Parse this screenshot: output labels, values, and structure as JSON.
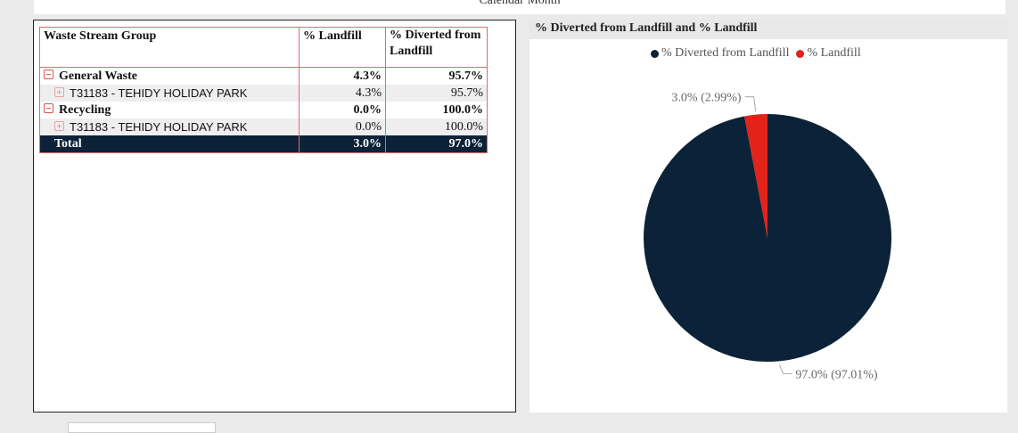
{
  "header": {
    "title": "Calendar Month"
  },
  "table": {
    "columns": [
      "Waste Stream Group",
      "% Landfill",
      "% Diverted from Landfill"
    ],
    "rows": [
      {
        "label": "General Waste",
        "landfill": "4.3%",
        "diverted": "95.7%"
      },
      {
        "label": "T31183 - TEHIDY HOLIDAY PARK",
        "landfill": "4.3%",
        "diverted": "95.7%"
      },
      {
        "label": "Recycling",
        "landfill": "0.0%",
        "diverted": "100.0%"
      },
      {
        "label": "T31183 - TEHIDY HOLIDAY PARK",
        "landfill": "0.0%",
        "diverted": "100.0%"
      }
    ],
    "total": {
      "label": "Total",
      "landfill": "3.0%",
      "diverted": "97.0%"
    }
  },
  "pie": {
    "title": "% Diverted from Landfill and % Landfill",
    "legend": [
      {
        "label": "% Diverted from Landfill",
        "color": "#0c2238"
      },
      {
        "label": "% Landfill",
        "color": "#e2231a"
      }
    ]
  },
  "chart_data": {
    "type": "pie",
    "title": "% Diverted from Landfill and % Landfill",
    "slices": [
      {
        "name": "% Diverted from Landfill",
        "value": 97.01,
        "label": "97.0% (97.01%)",
        "color": "#0c2238"
      },
      {
        "name": "% Landfill",
        "value": 2.99,
        "label": "3.0% (2.99%)",
        "color": "#e2231a"
      }
    ],
    "legend_position": "top-center"
  },
  "footer": {
    "tab_label": ""
  }
}
